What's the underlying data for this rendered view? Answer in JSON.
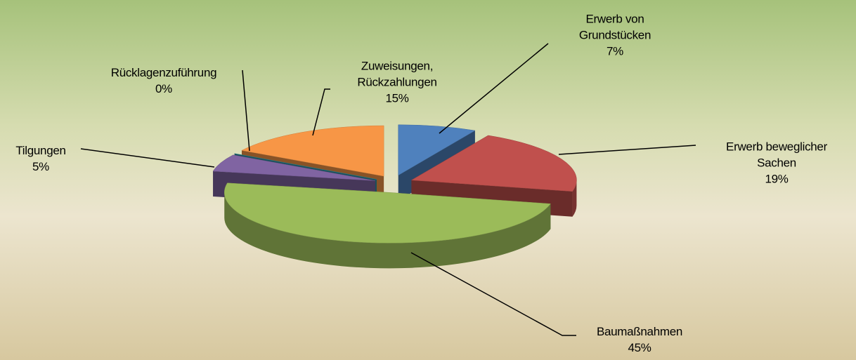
{
  "chart_data": {
    "type": "pie3d",
    "categories": [
      "Erwerb von Grundstücken",
      "Erwerb beweglicher Sachen",
      "Baumaßnahmen",
      "Tilgungen",
      "Rücklagenzuführung",
      "Zuweisungen, Rückzahlungen"
    ],
    "values": [
      7,
      19,
      45,
      5,
      0,
      15
    ],
    "value_labels": [
      "7%",
      "19%",
      "45%",
      "5%",
      "0%",
      "15%"
    ],
    "colors": [
      "#4f81bd",
      "#c0504d",
      "#9bbb59",
      "#8064a2",
      "#2f8fa3",
      "#f79646"
    ]
  }
}
